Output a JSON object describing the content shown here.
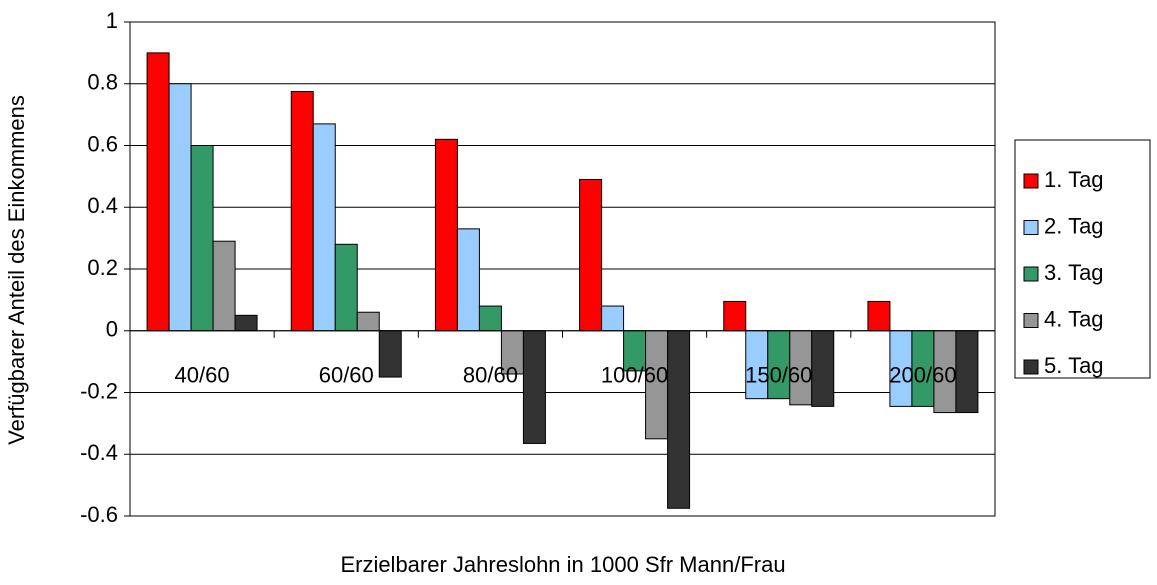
{
  "chart_data": {
    "type": "bar",
    "y_label": "Verfügbarer Anteil des Einkommens",
    "x_label": "Erzielbarer Jahreslohn in 1000 Sfr Mann/Frau",
    "categories": [
      "40/60",
      "60/60",
      "80/60",
      "100/60",
      "150/60",
      "200/60"
    ],
    "series": [
      {
        "name": "1. Tag",
        "color": "#ff0000",
        "values": [
          0.9,
          0.775,
          0.62,
          0.49,
          0.095,
          0.095
        ]
      },
      {
        "name": "2. Tag",
        "color": "#99ccff",
        "values": [
          0.8,
          0.67,
          0.33,
          0.08,
          -0.22,
          -0.245
        ]
      },
      {
        "name": "3. Tag",
        "color": "#339966",
        "values": [
          0.6,
          0.28,
          0.08,
          -0.13,
          -0.22,
          -0.245
        ]
      },
      {
        "name": "4. Tag",
        "color": "#969696",
        "values": [
          0.29,
          0.06,
          -0.14,
          -0.35,
          -0.24,
          -0.265
        ]
      },
      {
        "name": "5. Tag",
        "color": "#333333",
        "values": [
          0.05,
          -0.15,
          -0.365,
          -0.575,
          -0.245,
          -0.265
        ]
      }
    ],
    "ylim": [
      -0.6,
      1
    ],
    "yticks": [
      -0.6,
      -0.4,
      -0.2,
      0,
      0.2,
      0.4,
      0.6,
      0.8,
      1
    ],
    "grid": true,
    "legend": "right"
  }
}
